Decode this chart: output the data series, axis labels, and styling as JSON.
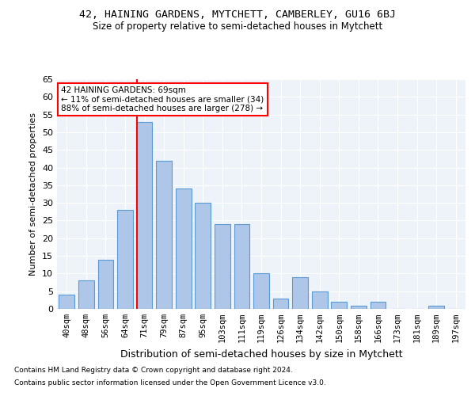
{
  "title1": "42, HAINING GARDENS, MYTCHETT, CAMBERLEY, GU16 6BJ",
  "title2": "Size of property relative to semi-detached houses in Mytchett",
  "xlabel": "Distribution of semi-detached houses by size in Mytchett",
  "ylabel": "Number of semi-detached properties",
  "categories": [
    "40sqm",
    "48sqm",
    "56sqm",
    "64sqm",
    "71sqm",
    "79sqm",
    "87sqm",
    "95sqm",
    "103sqm",
    "111sqm",
    "119sqm",
    "126sqm",
    "134sqm",
    "142sqm",
    "150sqm",
    "158sqm",
    "166sqm",
    "173sqm",
    "181sqm",
    "189sqm",
    "197sqm"
  ],
  "values": [
    4,
    8,
    14,
    28,
    53,
    42,
    34,
    30,
    24,
    24,
    10,
    3,
    9,
    5,
    2,
    1,
    2,
    0,
    0,
    1,
    0
  ],
  "bar_color": "#aec6e8",
  "bar_edge_color": "#5b9bd5",
  "reference_line_index": 4,
  "annotation_text_line1": "42 HAINING GARDENS: 69sqm",
  "annotation_text_line2": "← 11% of semi-detached houses are smaller (34)",
  "annotation_text_line3": "88% of semi-detached houses are larger (278) →",
  "ylim": [
    0,
    65
  ],
  "yticks": [
    0,
    5,
    10,
    15,
    20,
    25,
    30,
    35,
    40,
    45,
    50,
    55,
    60,
    65
  ],
  "bg_color": "#eef2f9",
  "grid_color": "#ffffff",
  "footnote1": "Contains HM Land Registry data © Crown copyright and database right 2024.",
  "footnote2": "Contains public sector information licensed under the Open Government Licence v3.0."
}
